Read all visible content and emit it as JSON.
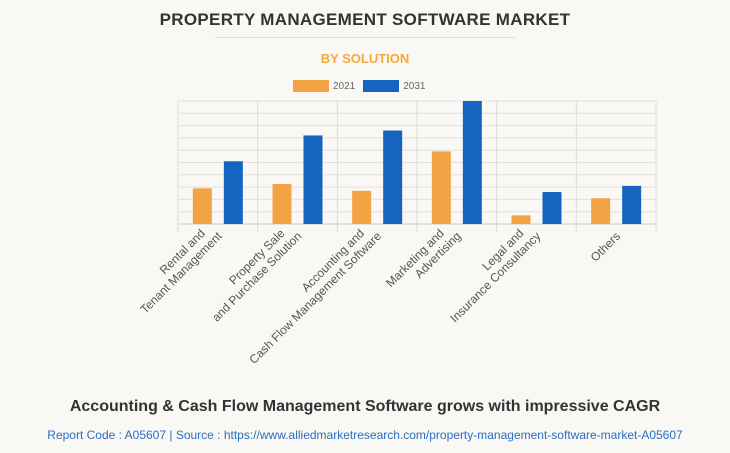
{
  "title": "PROPERTY MANAGEMENT SOFTWARE MARKET",
  "subtitle": "BY SOLUTION",
  "caption": "Accounting & Cash Flow Management Software grows with impressive CAGR",
  "source": "Report Code : A05607  |  Source : https://www.alliedmarketresearch.com/property-management-software-market-A05607",
  "chart_data": {
    "type": "bar",
    "title": "PROPERTY MANAGEMENT SOFTWARE MARKET",
    "subtitle": "BY SOLUTION",
    "categories": [
      [
        "Rental and",
        "Tenant Management"
      ],
      [
        "Property Sale",
        "and Purchase Solution"
      ],
      [
        "Accounting and",
        "Cash Flow Management Software"
      ],
      [
        "Marketing and",
        "Advertising"
      ],
      [
        "Legal and",
        "Insurance Consultancy"
      ],
      [
        "Others"
      ]
    ],
    "series": [
      {
        "name": "2021",
        "color": "#f2a343",
        "values": [
          2.9,
          3.25,
          2.7,
          5.9,
          0.7,
          2.1
        ]
      },
      {
        "name": "2031",
        "color": "#1565c0",
        "values": [
          5.1,
          7.2,
          7.6,
          10,
          2.6,
          3.1
        ]
      }
    ],
    "ylim": [
      0,
      10
    ],
    "y_tick_labels_shown": false,
    "grid": true,
    "legend": "top-center"
  }
}
